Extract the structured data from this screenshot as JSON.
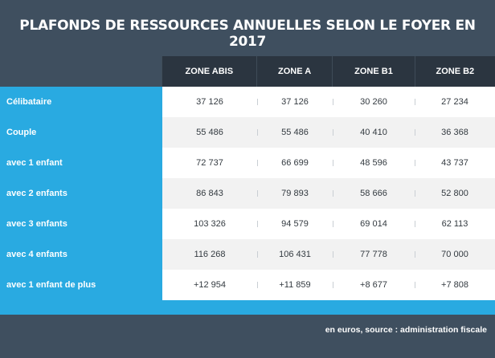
{
  "title": "PLAFONDS DE RESSOURCES ANNUELLES SELON LE FOYER EN 2017",
  "columns": [
    "ZONE ABIS",
    "ZONE A",
    "ZONE B1",
    "ZONE B2"
  ],
  "rows": [
    {
      "label": "Célibataire",
      "values": [
        "37 126",
        "37 126",
        "30 260",
        "27 234"
      ]
    },
    {
      "label": "Couple",
      "values": [
        "55 486",
        "55 486",
        "40 410",
        "36 368"
      ]
    },
    {
      "label": "avec 1 enfant",
      "values": [
        "72 737",
        "66 699",
        "48 596",
        "43 737"
      ]
    },
    {
      "label": "avec 2 enfants",
      "values": [
        "86 843",
        "79 893",
        "58 666",
        "52 800"
      ]
    },
    {
      "label": "avec 3 enfants",
      "values": [
        "103 326",
        "94 579",
        "69 014",
        "62 113"
      ]
    },
    {
      "label": "avec 4 enfants",
      "values": [
        "116 268",
        "106 431",
        "77 778",
        "70 000"
      ]
    },
    {
      "label": "avec 1 enfant de plus",
      "values": [
        "+12 954",
        "+11 859",
        "+8 677",
        "+7 808"
      ]
    }
  ],
  "footer": "en euros, source : administration fiscale",
  "colors": {
    "background": "#3f4f5f",
    "accent": "#29aae1",
    "header": "#2b3540"
  }
}
